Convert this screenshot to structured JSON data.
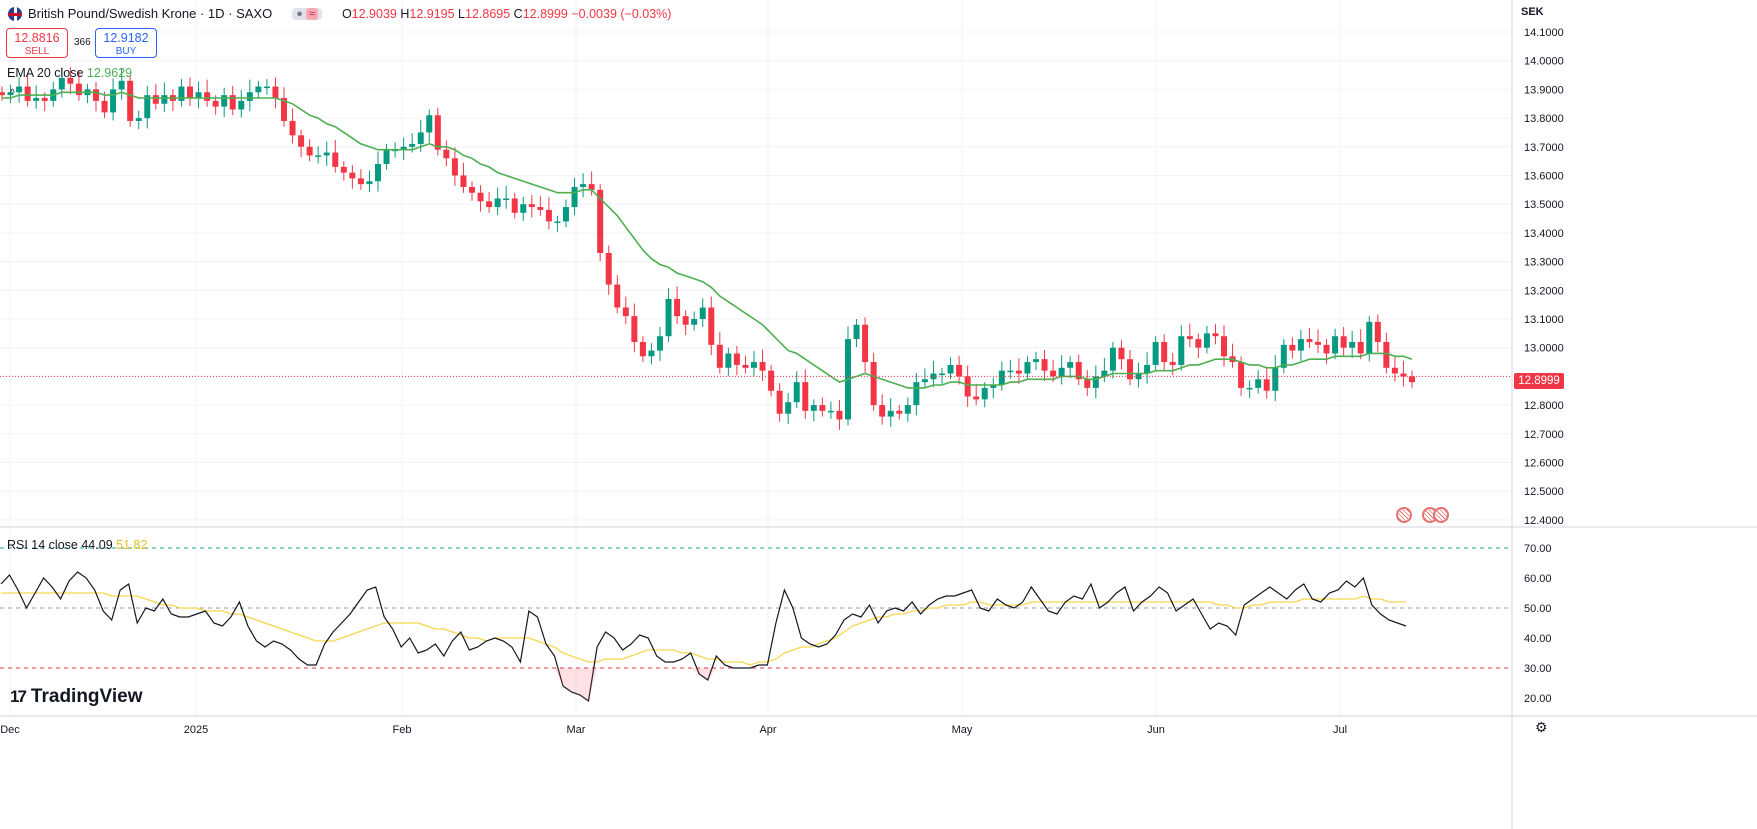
{
  "header": {
    "symbol_title": "British Pound/Swedish Krone · 1D · SAXO",
    "ohlc": {
      "o": "12.9039",
      "h": "12.9195",
      "l": "12.8695",
      "c": "12.8999",
      "chg": "−0.0039 (−0.03%)"
    },
    "o_label": "O",
    "h_label": "H",
    "l_label": "L",
    "c_label": "C",
    "eq_glyph": "≈"
  },
  "trade": {
    "sell_price": "12.8816",
    "sell_label": "SELL",
    "buy_price": "12.9182",
    "buy_label": "BUY",
    "spread": "366"
  },
  "indicators": {
    "ema_label": "EMA 20 close",
    "ema_value": "12.9629",
    "rsi_label": "RSI 14 close",
    "rsi_value": "44.09",
    "rsi_ma_value": "51.82"
  },
  "currency": "SEK",
  "last_price": "12.8999",
  "branding": "TradingView",
  "colors": {
    "up": "#089981",
    "down": "#f23645",
    "ema": "#4caf50",
    "rsi": "#131722",
    "rsi_ma": "#f7d64a"
  },
  "chart_data": [
    {
      "type": "candlestick",
      "title": "British Pound/Swedish Krone",
      "ylabel": "SEK",
      "ylim": [
        12.4,
        14.1
      ],
      "price_ticks": [
        "14.1000",
        "14.0000",
        "13.9000",
        "13.8000",
        "13.7000",
        "13.6000",
        "13.5000",
        "13.4000",
        "13.3000",
        "13.2000",
        "13.1000",
        "13.0000",
        "12.9000",
        "12.8000",
        "12.7000",
        "12.6000",
        "12.5000",
        "12.4000"
      ],
      "x_ticks": [
        "Dec",
        "2025",
        "Feb",
        "Mar",
        "Apr",
        "May",
        "Jun",
        "Jul"
      ],
      "close": [
        13.88,
        13.89,
        13.91,
        13.86,
        13.87,
        13.86,
        13.9,
        13.94,
        13.92,
        13.88,
        13.9,
        13.86,
        13.82,
        13.9,
        13.93,
        13.79,
        13.8,
        13.88,
        13.85,
        13.88,
        13.86,
        13.91,
        13.87,
        13.89,
        13.86,
        13.84,
        13.88,
        13.83,
        13.86,
        13.89,
        13.91,
        13.91,
        13.87,
        13.79,
        13.74,
        13.7,
        13.67,
        13.67,
        13.68,
        13.63,
        13.61,
        13.59,
        13.57,
        13.58,
        13.64,
        13.69,
        13.69,
        13.7,
        13.71,
        13.75,
        13.81,
        13.69,
        13.66,
        13.6,
        13.56,
        13.54,
        13.51,
        13.49,
        13.52,
        13.52,
        13.47,
        13.5,
        13.49,
        13.48,
        13.44,
        13.44,
        13.49,
        13.56,
        13.57,
        13.55,
        13.33,
        13.22,
        13.14,
        13.11,
        13.02,
        12.97,
        12.99,
        13.04,
        13.17,
        13.11,
        13.08,
        13.1,
        13.14,
        13.01,
        12.93,
        12.98,
        12.94,
        12.93,
        12.95,
        12.92,
        12.85,
        12.77,
        12.81,
        12.88,
        12.78,
        12.8,
        12.78,
        12.78,
        12.75,
        13.03,
        13.08,
        12.95,
        12.8,
        12.76,
        12.78,
        12.77,
        12.8,
        12.88,
        12.89,
        12.91,
        12.91,
        12.94,
        12.9,
        12.83,
        12.82,
        12.86,
        12.87,
        12.92,
        12.92,
        12.91,
        12.95,
        12.96,
        12.92,
        12.9,
        12.93,
        12.95,
        12.89,
        12.86,
        12.9,
        12.92,
        13.0,
        12.96,
        12.89,
        12.91,
        12.94,
        13.02,
        12.95,
        12.94,
        13.04,
        13.03,
        13.0,
        13.05,
        13.04,
        12.97,
        12.95,
        12.86,
        12.86,
        12.89,
        12.85,
        12.93,
        13.01,
        12.99,
        13.03,
        13.02,
        13.01,
        12.98,
        13.04,
        13.0,
        13.02,
        12.98,
        13.09,
        13.02,
        12.93,
        12.91,
        12.9,
        12.88
      ],
      "ema": [
        13.87,
        13.87,
        13.88,
        13.88,
        13.88,
        13.88,
        13.88,
        13.89,
        13.89,
        13.89,
        13.89,
        13.89,
        13.88,
        13.88,
        13.89,
        13.88,
        13.87,
        13.87,
        13.87,
        13.87,
        13.87,
        13.87,
        13.87,
        13.87,
        13.87,
        13.87,
        13.87,
        13.87,
        13.87,
        13.87,
        13.87,
        13.87,
        13.87,
        13.86,
        13.85,
        13.83,
        13.81,
        13.8,
        13.78,
        13.77,
        13.75,
        13.73,
        13.71,
        13.7,
        13.69,
        13.69,
        13.69,
        13.69,
        13.69,
        13.7,
        13.71,
        13.7,
        13.7,
        13.69,
        13.67,
        13.66,
        13.64,
        13.63,
        13.61,
        13.6,
        13.59,
        13.58,
        13.57,
        13.56,
        13.55,
        13.54,
        13.54,
        13.54,
        13.55,
        13.55,
        13.52,
        13.49,
        13.46,
        13.42,
        13.38,
        13.34,
        13.31,
        13.29,
        13.28,
        13.26,
        13.25,
        13.24,
        13.23,
        13.21,
        13.18,
        13.16,
        13.14,
        13.12,
        13.1,
        13.08,
        13.05,
        13.02,
        12.99,
        12.98,
        12.96,
        12.94,
        12.92,
        12.9,
        12.88,
        12.89,
        12.9,
        12.91,
        12.9,
        12.89,
        12.88,
        12.87,
        12.86,
        12.86,
        12.86,
        12.87,
        12.87,
        12.88,
        12.88,
        12.87,
        12.87,
        12.87,
        12.87,
        12.87,
        12.88,
        12.88,
        12.89,
        12.89,
        12.89,
        12.89,
        12.9,
        12.9,
        12.9,
        12.89,
        12.89,
        12.9,
        12.91,
        12.91,
        12.91,
        12.91,
        12.91,
        12.92,
        12.92,
        12.92,
        12.93,
        12.94,
        12.94,
        12.95,
        12.96,
        12.96,
        12.96,
        12.95,
        12.94,
        12.94,
        12.93,
        12.93,
        12.94,
        12.94,
        12.95,
        12.96,
        12.96,
        12.96,
        12.97,
        12.97,
        12.97,
        12.97,
        12.98,
        12.98,
        12.98,
        12.97,
        12.97,
        12.96
      ]
    },
    {
      "type": "line",
      "title": "RSI 14 close",
      "ylim": [
        15,
        75
      ],
      "y_ticks": [
        "70.00",
        "60.00",
        "50.00",
        "40.00",
        "30.00",
        "20.00"
      ],
      "reference_lines": [
        70,
        50,
        30
      ],
      "series": [
        {
          "name": "RSI",
          "values": [
            58,
            61,
            56,
            50,
            55,
            60,
            57,
            53,
            59,
            62,
            60,
            56,
            49,
            46,
            56,
            58,
            45,
            50,
            49,
            53,
            48,
            47,
            47,
            48,
            49,
            45,
            44,
            47,
            52,
            44,
            39,
            37,
            39,
            38,
            36,
            33,
            31,
            31,
            38,
            42,
            45,
            48,
            52,
            56,
            57,
            47,
            43,
            37,
            40,
            35,
            36,
            38,
            34,
            39,
            42,
            36,
            37,
            39,
            40,
            39,
            37,
            32,
            49,
            47,
            38,
            34,
            24,
            22,
            21,
            19,
            37,
            42,
            40,
            36,
            38,
            41,
            40,
            34,
            32,
            32,
            33,
            35,
            28,
            26,
            34,
            31,
            30,
            30,
            30,
            31,
            31,
            45,
            56,
            50,
            40,
            38,
            37,
            38,
            41,
            46,
            48,
            47,
            51,
            45,
            49,
            50,
            49,
            52,
            48,
            51,
            53,
            54,
            54,
            55,
            56,
            50,
            49,
            53,
            51,
            50,
            52,
            57,
            53,
            49,
            48,
            52,
            54,
            53,
            58,
            50,
            52,
            55,
            57,
            49,
            52,
            54,
            57,
            55,
            49,
            51,
            53,
            48,
            43,
            45,
            44,
            41,
            51,
            53,
            55,
            57,
            55,
            53,
            56,
            58,
            53,
            52,
            55,
            56,
            59,
            57,
            60,
            51,
            48,
            46,
            45,
            44
          ]
        },
        {
          "name": "RSI MA",
          "values": [
            55,
            55,
            55,
            55,
            55,
            55,
            55,
            55,
            55,
            55,
            55,
            55,
            55,
            54,
            54,
            54,
            54,
            53,
            52,
            51,
            51,
            50,
            50,
            50,
            49,
            49,
            49,
            48,
            48,
            47,
            46,
            45,
            44,
            43,
            42,
            41,
            40,
            39,
            39,
            39,
            40,
            41,
            42,
            43,
            44,
            45,
            45,
            45,
            45,
            45,
            44,
            43,
            43,
            42,
            41,
            40,
            40,
            39,
            40,
            40,
            40,
            40,
            40,
            39,
            38,
            37,
            35,
            34,
            33,
            32,
            32,
            33,
            33,
            33,
            34,
            35,
            36,
            36,
            36,
            36,
            35,
            35,
            34,
            33,
            33,
            32,
            32,
            32,
            31,
            32,
            32,
            33,
            35,
            36,
            37,
            37,
            38,
            39,
            40,
            42,
            44,
            45,
            46,
            47,
            47,
            48,
            48,
            49,
            49,
            50,
            50,
            51,
            51,
            51,
            52,
            52,
            51,
            51,
            51,
            51,
            51,
            52,
            52,
            52,
            52,
            52,
            52,
            52,
            52,
            52,
            52,
            52,
            52,
            52,
            52,
            52,
            52,
            52,
            52,
            52,
            52,
            52,
            52,
            51,
            51,
            50,
            50,
            51,
            51,
            52,
            52,
            52,
            52,
            53,
            53,
            53,
            53,
            53,
            53,
            53,
            54,
            53,
            53,
            52,
            52,
            52
          ]
        }
      ]
    }
  ]
}
